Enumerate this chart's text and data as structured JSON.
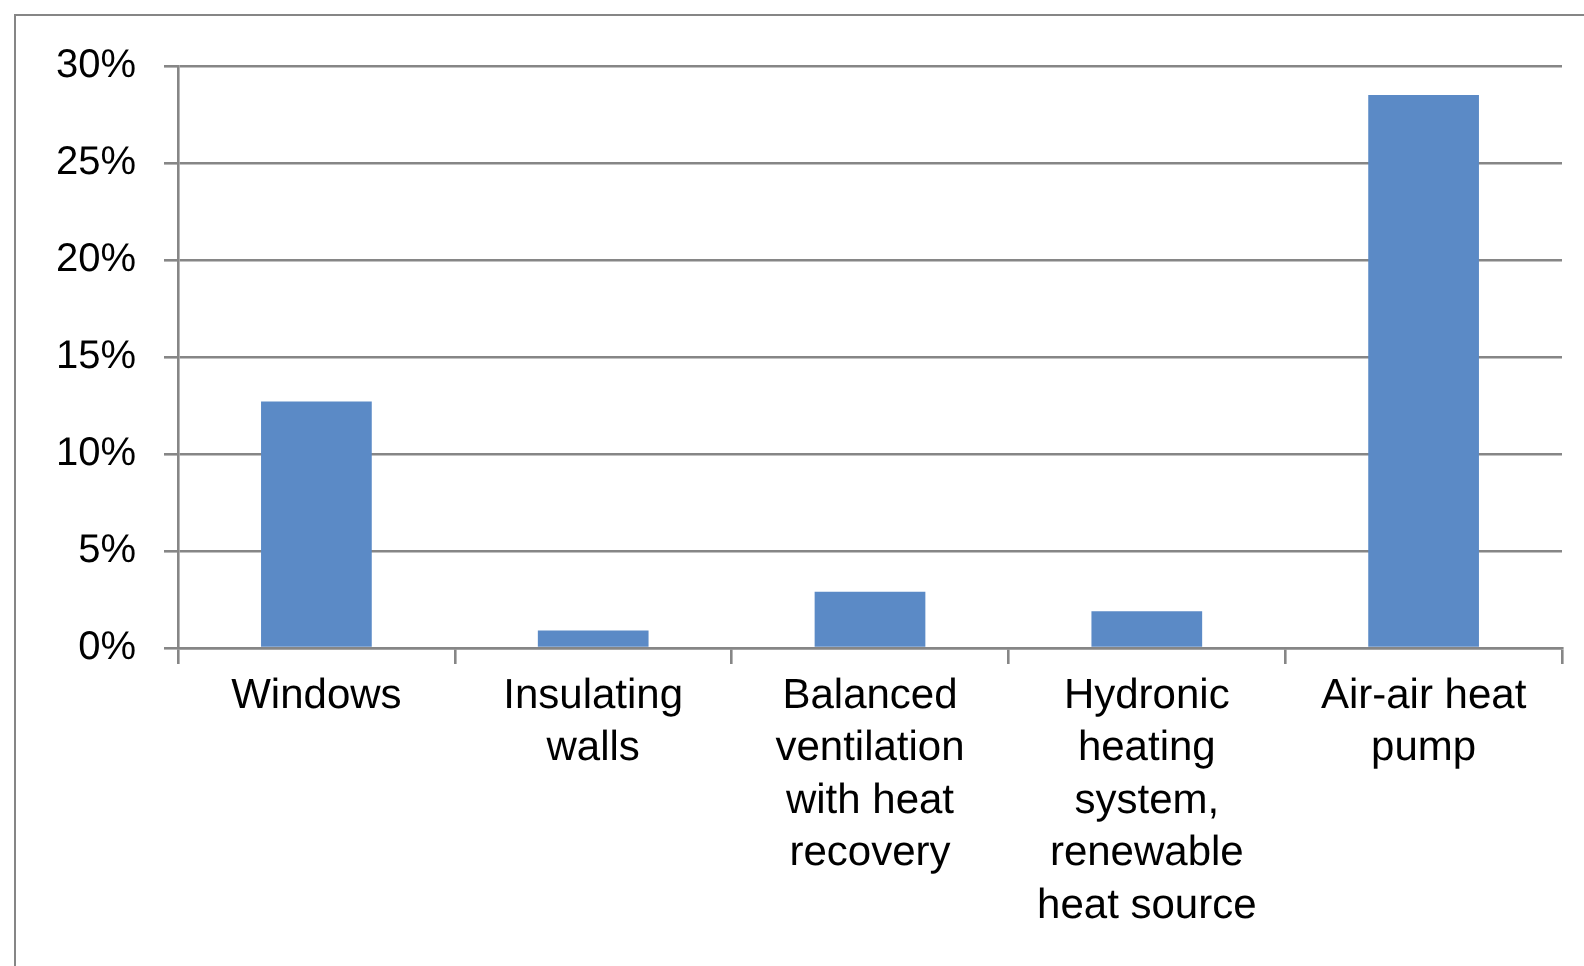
{
  "chart_data": {
    "type": "bar",
    "categories": [
      "Windows",
      "Insulating walls",
      "Balanced ventilation with heat recovery",
      "Hydronic heating system, renewable heat source",
      "Air-air heat pump"
    ],
    "values": [
      12.7,
      0.9,
      2.9,
      1.9,
      28.5
    ],
    "color": "#5b8ac6",
    "ylim": [
      0,
      30
    ],
    "yticks": [
      {
        "value": 0,
        "label": "0%"
      },
      {
        "value": 5,
        "label": "5%"
      },
      {
        "value": 10,
        "label": "10%"
      },
      {
        "value": 15,
        "label": "15%"
      },
      {
        "value": 20,
        "label": "20%"
      },
      {
        "value": 25,
        "label": "25%"
      },
      {
        "value": 30,
        "label": "30%"
      }
    ],
    "grid": "y",
    "legend": false
  }
}
